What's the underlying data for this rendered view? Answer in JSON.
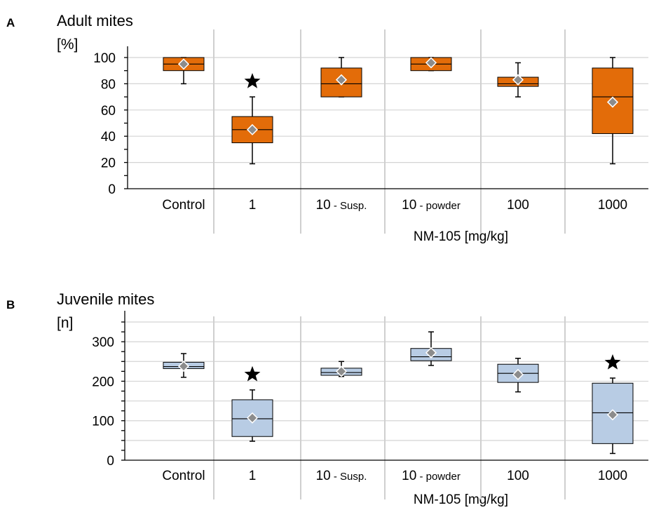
{
  "chart_data": [
    {
      "type": "box",
      "panel": "A",
      "title": "Adult mites",
      "ylabel": "[%]",
      "xlabel": "NM-105 [mg/kg]",
      "ylim": [
        0,
        100
      ],
      "yticks": [
        "0",
        "20",
        "40",
        "60",
        "80",
        "100"
      ],
      "color": "#e36c09",
      "categories": [
        "Control",
        "1",
        "10 - Susp.",
        "10 - powder",
        "100",
        "1000"
      ],
      "boxes": [
        {
          "min": 80,
          "q1": 90,
          "median": 95,
          "q3": 100,
          "max": 100,
          "mean": 95,
          "sig": false
        },
        {
          "min": 19,
          "q1": 35,
          "median": 45,
          "q3": 55,
          "max": 70,
          "mean": 45,
          "sig": true
        },
        {
          "min": 70,
          "q1": 70,
          "median": 80,
          "q3": 92,
          "max": 100,
          "mean": 83,
          "sig": false
        },
        {
          "min": 90,
          "q1": 90,
          "median": 95,
          "q3": 100,
          "max": 100,
          "mean": 96,
          "sig": false
        },
        {
          "min": 70,
          "q1": 78,
          "median": 80,
          "q3": 85,
          "max": 96,
          "mean": 83,
          "sig": false
        },
        {
          "min": 19,
          "q1": 42,
          "median": 70,
          "q3": 92,
          "max": 100,
          "mean": 66,
          "sig": false
        }
      ]
    },
    {
      "type": "box",
      "panel": "B",
      "title": "Juvenile mites",
      "ylabel": "[n]",
      "xlabel": "NM-105 [mg/kg]",
      "ylim": [
        0,
        350
      ],
      "yticks": [
        "0",
        "100",
        "200",
        "300"
      ],
      "color": "#b8cce4",
      "categories": [
        "Control",
        "1",
        "10 - Susp.",
        "10 - powder",
        "100",
        "1000"
      ],
      "boxes": [
        {
          "min": 210,
          "q1": 232,
          "median": 237,
          "q3": 248,
          "max": 270,
          "mean": 238,
          "sig": false
        },
        {
          "min": 48,
          "q1": 60,
          "median": 105,
          "q3": 153,
          "max": 178,
          "mean": 107,
          "sig": true
        },
        {
          "min": 212,
          "q1": 215,
          "median": 222,
          "q3": 233,
          "max": 250,
          "mean": 225,
          "sig": false
        },
        {
          "min": 240,
          "q1": 252,
          "median": 262,
          "q3": 283,
          "max": 325,
          "mean": 272,
          "sig": false
        },
        {
          "min": 173,
          "q1": 197,
          "median": 220,
          "q3": 243,
          "max": 258,
          "mean": 217,
          "sig": false
        },
        {
          "min": 17,
          "q1": 42,
          "median": 120,
          "q3": 195,
          "max": 208,
          "mean": 115,
          "sig": true
        }
      ]
    }
  ]
}
